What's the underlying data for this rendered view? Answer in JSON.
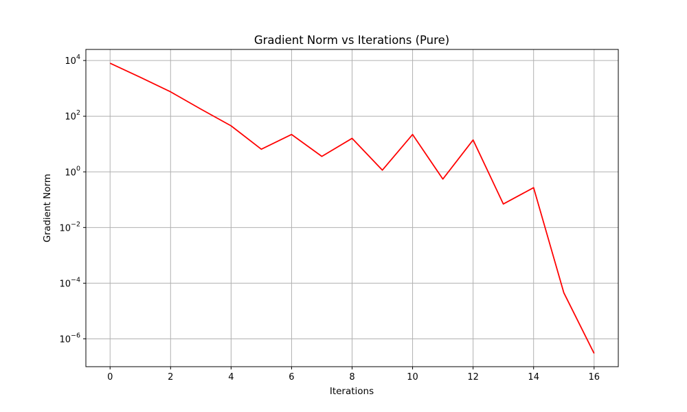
{
  "chart_data": {
    "type": "line",
    "title": "Gradient Norm vs Iterations (Pure)",
    "xlabel": "Iterations",
    "ylabel": "Gradient Norm",
    "y_scale": "log",
    "grid": true,
    "xlim": [
      -0.8,
      16.8
    ],
    "ylim": [
      1e-07,
      25000.0
    ],
    "x_ticks": [
      0,
      2,
      4,
      6,
      8,
      10,
      12,
      14,
      16
    ],
    "y_ticks": [
      {
        "value": 1e-06,
        "base": "10",
        "exp": "−6"
      },
      {
        "value": 0.0001,
        "base": "10",
        "exp": "−4"
      },
      {
        "value": 0.01,
        "base": "10",
        "exp": "−2"
      },
      {
        "value": 1,
        "base": "10",
        "exp": "0"
      },
      {
        "value": 100,
        "base": "10",
        "exp": "2"
      },
      {
        "value": 10000,
        "base": "10",
        "exp": "4"
      }
    ],
    "series": [
      {
        "color": "#ff0000",
        "x": [
          0,
          1,
          2,
          3,
          4,
          5,
          6,
          7,
          8,
          9,
          10,
          11,
          12,
          13,
          14,
          15,
          16
        ],
        "y": [
          8000,
          2500,
          750,
          180,
          45,
          6.5,
          22,
          3.6,
          16,
          1.15,
          22,
          0.55,
          14,
          0.07,
          0.27,
          4.5e-05,
          3e-07
        ]
      }
    ]
  }
}
